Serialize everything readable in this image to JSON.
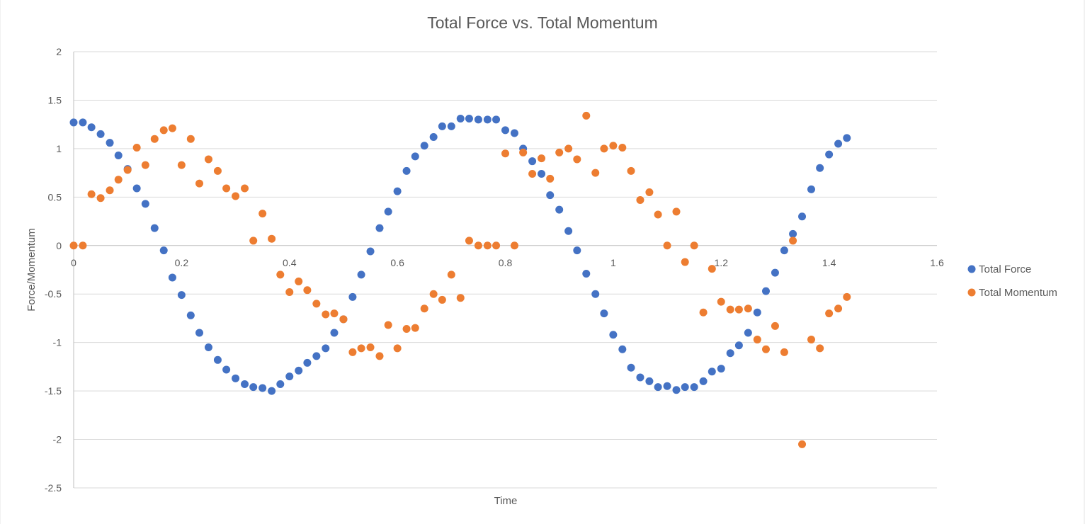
{
  "chart_data": {
    "type": "scatter",
    "title": "Total Force vs. Total Momentum",
    "xlabel": "Time",
    "ylabel": "Force/Momentum",
    "xlim": [
      0,
      1.6
    ],
    "ylim": [
      -2.5,
      2
    ],
    "x_ticks": [
      "0",
      "0.2",
      "0.4",
      "0.6",
      "0.8",
      "1",
      "1.2",
      "1.4",
      "1.6"
    ],
    "y_ticks": [
      "2",
      "1.5",
      "1",
      "0.5",
      "0",
      "-0.5",
      "-1",
      "-1.5",
      "-2",
      "-2.5"
    ],
    "grid": true,
    "legend_position": "right",
    "series": [
      {
        "name": "Total Force",
        "color": "#4472c4",
        "points": [
          [
            0.0,
            1.27
          ],
          [
            0.017,
            1.27
          ],
          [
            0.033,
            1.22
          ],
          [
            0.05,
            1.15
          ],
          [
            0.067,
            1.06
          ],
          [
            0.083,
            0.93
          ],
          [
            0.1,
            0.79
          ],
          [
            0.117,
            0.59
          ],
          [
            0.133,
            0.43
          ],
          [
            0.15,
            0.18
          ],
          [
            0.167,
            -0.05
          ],
          [
            0.183,
            -0.33
          ],
          [
            0.2,
            -0.51
          ],
          [
            0.217,
            -0.72
          ],
          [
            0.233,
            -0.9
          ],
          [
            0.25,
            -1.05
          ],
          [
            0.267,
            -1.18
          ],
          [
            0.283,
            -1.28
          ],
          [
            0.3,
            -1.37
          ],
          [
            0.317,
            -1.43
          ],
          [
            0.333,
            -1.46
          ],
          [
            0.35,
            -1.47
          ],
          [
            0.367,
            -1.5
          ],
          [
            0.383,
            -1.43
          ],
          [
            0.4,
            -1.35
          ],
          [
            0.417,
            -1.29
          ],
          [
            0.433,
            -1.21
          ],
          [
            0.45,
            -1.14
          ],
          [
            0.467,
            -1.06
          ],
          [
            0.483,
            -0.9
          ],
          [
            0.5,
            -0.76
          ],
          [
            0.517,
            -0.53
          ],
          [
            0.533,
            -0.3
          ],
          [
            0.55,
            -0.06
          ],
          [
            0.567,
            0.18
          ],
          [
            0.583,
            0.35
          ],
          [
            0.6,
            0.56
          ],
          [
            0.617,
            0.77
          ],
          [
            0.633,
            0.92
          ],
          [
            0.65,
            1.03
          ],
          [
            0.667,
            1.12
          ],
          [
            0.683,
            1.23
          ],
          [
            0.7,
            1.23
          ],
          [
            0.717,
            1.31
          ],
          [
            0.733,
            1.31
          ],
          [
            0.75,
            1.3
          ],
          [
            0.767,
            1.3
          ],
          [
            0.783,
            1.3
          ],
          [
            0.8,
            1.19
          ],
          [
            0.817,
            1.16
          ],
          [
            0.833,
            1.0
          ],
          [
            0.85,
            0.87
          ],
          [
            0.867,
            0.74
          ],
          [
            0.883,
            0.52
          ],
          [
            0.9,
            0.37
          ],
          [
            0.917,
            0.15
          ],
          [
            0.933,
            -0.05
          ],
          [
            0.95,
            -0.29
          ],
          [
            0.967,
            -0.5
          ],
          [
            0.983,
            -0.7
          ],
          [
            1.0,
            -0.92
          ],
          [
            1.017,
            -1.07
          ],
          [
            1.033,
            -1.26
          ],
          [
            1.05,
            -1.36
          ],
          [
            1.067,
            -1.4
          ],
          [
            1.083,
            -1.46
          ],
          [
            1.1,
            -1.45
          ],
          [
            1.117,
            -1.49
          ],
          [
            1.133,
            -1.46
          ],
          [
            1.15,
            -1.46
          ],
          [
            1.167,
            -1.4
          ],
          [
            1.183,
            -1.3
          ],
          [
            1.2,
            -1.27
          ],
          [
            1.217,
            -1.11
          ],
          [
            1.233,
            -1.03
          ],
          [
            1.25,
            -0.9
          ],
          [
            1.267,
            -0.69
          ],
          [
            1.283,
            -0.47
          ],
          [
            1.3,
            -0.28
          ],
          [
            1.317,
            -0.05
          ],
          [
            1.333,
            0.12
          ],
          [
            1.35,
            0.3
          ],
          [
            1.367,
            0.58
          ],
          [
            1.383,
            0.8
          ],
          [
            1.4,
            0.94
          ],
          [
            1.417,
            1.05
          ],
          [
            1.433,
            1.11
          ]
        ]
      },
      {
        "name": "Total Momentum",
        "color": "#ed7d31",
        "points": [
          [
            0.0,
            0.0
          ],
          [
            0.017,
            0.0
          ],
          [
            0.033,
            0.53
          ],
          [
            0.05,
            0.49
          ],
          [
            0.067,
            0.57
          ],
          [
            0.083,
            0.68
          ],
          [
            0.1,
            0.78
          ],
          [
            0.117,
            1.01
          ],
          [
            0.133,
            0.83
          ],
          [
            0.15,
            1.1
          ],
          [
            0.167,
            1.19
          ],
          [
            0.183,
            1.21
          ],
          [
            0.2,
            0.83
          ],
          [
            0.217,
            1.1
          ],
          [
            0.233,
            0.64
          ],
          [
            0.25,
            0.89
          ],
          [
            0.267,
            0.77
          ],
          [
            0.283,
            0.59
          ],
          [
            0.3,
            0.51
          ],
          [
            0.317,
            0.59
          ],
          [
            0.333,
            0.05
          ],
          [
            0.35,
            0.33
          ],
          [
            0.367,
            0.07
          ],
          [
            0.383,
            -0.3
          ],
          [
            0.4,
            -0.48
          ],
          [
            0.417,
            -0.37
          ],
          [
            0.433,
            -0.46
          ],
          [
            0.45,
            -0.6
          ],
          [
            0.467,
            -0.71
          ],
          [
            0.483,
            -0.7
          ],
          [
            0.5,
            -0.76
          ],
          [
            0.517,
            -1.1
          ],
          [
            0.533,
            -1.06
          ],
          [
            0.55,
            -1.05
          ],
          [
            0.567,
            -1.14
          ],
          [
            0.583,
            -0.82
          ],
          [
            0.6,
            -1.06
          ],
          [
            0.617,
            -0.86
          ],
          [
            0.633,
            -0.85
          ],
          [
            0.65,
            -0.65
          ],
          [
            0.667,
            -0.5
          ],
          [
            0.683,
            -0.56
          ],
          [
            0.7,
            -0.3
          ],
          [
            0.717,
            -0.54
          ],
          [
            0.733,
            0.05
          ],
          [
            0.75,
            0.0
          ],
          [
            0.767,
            0.0
          ],
          [
            0.783,
            0.0
          ],
          [
            0.8,
            0.95
          ],
          [
            0.817,
            0.0
          ],
          [
            0.833,
            0.96
          ],
          [
            0.85,
            0.74
          ],
          [
            0.867,
            0.9
          ],
          [
            0.883,
            0.69
          ],
          [
            0.9,
            0.96
          ],
          [
            0.917,
            1.0
          ],
          [
            0.933,
            0.89
          ],
          [
            0.95,
            1.34
          ],
          [
            0.967,
            0.75
          ],
          [
            0.983,
            1.0
          ],
          [
            1.0,
            1.03
          ],
          [
            1.017,
            1.01
          ],
          [
            1.033,
            0.77
          ],
          [
            1.05,
            0.47
          ],
          [
            1.067,
            0.55
          ],
          [
            1.083,
            0.32
          ],
          [
            1.1,
            0.0
          ],
          [
            1.117,
            0.35
          ],
          [
            1.133,
            -0.17
          ],
          [
            1.15,
            0.0
          ],
          [
            1.167,
            -0.69
          ],
          [
            1.183,
            -0.24
          ],
          [
            1.2,
            -0.58
          ],
          [
            1.217,
            -0.66
          ],
          [
            1.233,
            -0.66
          ],
          [
            1.25,
            -0.65
          ],
          [
            1.267,
            -0.97
          ],
          [
            1.283,
            -1.07
          ],
          [
            1.3,
            -0.83
          ],
          [
            1.317,
            -1.1
          ],
          [
            1.333,
            0.05
          ],
          [
            1.35,
            -2.05
          ],
          [
            1.367,
            -0.97
          ],
          [
            1.383,
            -1.06
          ],
          [
            1.4,
            -0.7
          ],
          [
            1.417,
            -0.65
          ],
          [
            1.433,
            -0.53
          ]
        ]
      }
    ]
  }
}
